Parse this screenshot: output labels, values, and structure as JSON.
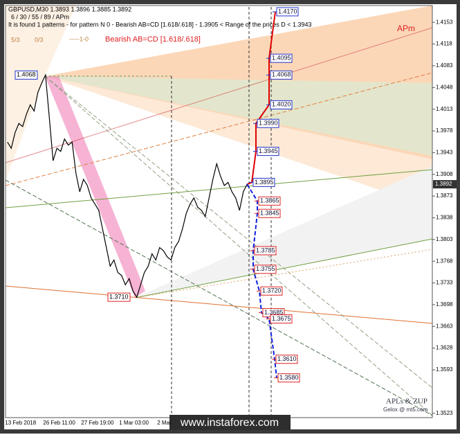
{
  "chart_data": {
    "type": "line",
    "header": [
      "GBPUSD,M30  1.3893 1.3896 1.3885 1.3892",
      "6 / 30 / 55 / 89 / APm",
      "It is found 1 patterns  -  for pattern N 0 - Bearish AB=CD [1.618/.618] - 1.3905 < Range of the prices D < 1.3943"
    ],
    "pattern_title": "Bearish AB=CD [1.618/.618]",
    "indicator_label": "APm",
    "credits": [
      "APLs & ZUP",
      "Gelox @ mt5.com"
    ],
    "watermark": "www.instaforex.com",
    "annotations": [
      "5/3",
      "0/3",
      "-----1-0"
    ],
    "categories": [
      null,
      null,
      null,
      "13 Feb 2018",
      null,
      null,
      null,
      null,
      null,
      null,
      null,
      null,
      null,
      "26 Feb 11:00",
      null,
      null,
      null,
      null,
      null,
      null,
      null,
      null,
      null,
      "27 Feb 19:00",
      null,
      null,
      null,
      null,
      null,
      null,
      null,
      null,
      null,
      "1 Mar 03:00",
      null,
      null,
      null,
      null,
      null,
      null,
      null,
      null,
      null,
      "2 Mar",
      null,
      null,
      null,
      null,
      null,
      null,
      null,
      null,
      null,
      null,
      null,
      null,
      null,
      null,
      null,
      null,
      null,
      null,
      null,
      null
    ],
    "values": [
      1.396,
      1.395,
      1.3975,
      1.399,
      1.3985,
      1.4005,
      1.402,
      1.401,
      1.404,
      1.4055,
      1.4068,
      1.4,
      1.393,
      1.395,
      1.3945,
      1.3965,
      1.3955,
      1.396,
      1.391,
      1.388,
      1.39,
      1.389,
      1.387,
      1.386,
      1.385,
      1.382,
      1.379,
      1.376,
      1.377,
      1.375,
      1.3745,
      1.373,
      1.374,
      1.372,
      1.371,
      1.373,
      1.375,
      1.376,
      1.378,
      1.377,
      1.379,
      1.3785,
      1.3775,
      1.377,
      1.379,
      1.38,
      1.382,
      1.3845,
      1.386,
      1.387,
      1.3855,
      1.385,
      1.384,
      1.387,
      1.39,
      1.3925,
      1.3905,
      1.389,
      1.3895,
      1.388,
      1.387,
      1.385,
      1.388,
      1.3892
    ],
    "color": "#000000",
    "ylim": [
      1.418,
      1.3516
    ],
    "yticks": [
      1.4153,
      1.4118,
      1.4083,
      1.4048,
      1.4013,
      1.3978,
      1.3943,
      1.3908,
      1.3873,
      1.3838,
      1.3803,
      1.3768,
      1.3733,
      1.3698,
      1.3663,
      1.3628,
      1.3593,
      1.3523
    ],
    "last_price": 1.3892,
    "pivot_labels": {
      "values": [
        1.4068,
        1.371
      ],
      "value_labels": [
        "1.4068",
        "1.3710"
      ]
    },
    "up_levels": {
      "color": "#e00000",
      "values": [
        1.3895,
        1.3945,
        1.399,
        1.402,
        1.4068,
        1.4095,
        1.417
      ],
      "value_labels": [
        "1.3895",
        "1.3945",
        "1.3990",
        "1.4020",
        "1.4068",
        "1.4095",
        "1.4170"
      ]
    },
    "down_levels": {
      "color": "#1020e0",
      "values": [
        1.3865,
        1.3845,
        1.3785,
        1.3755,
        1.372,
        1.3685,
        1.3675,
        1.361,
        1.358
      ],
      "value_labels": [
        "1.3865",
        "1.3845",
        "1.3785",
        "1.3755",
        "1.3720",
        "1.3685",
        "1.3675",
        "1.3610",
        "1.3580"
      ]
    }
  }
}
